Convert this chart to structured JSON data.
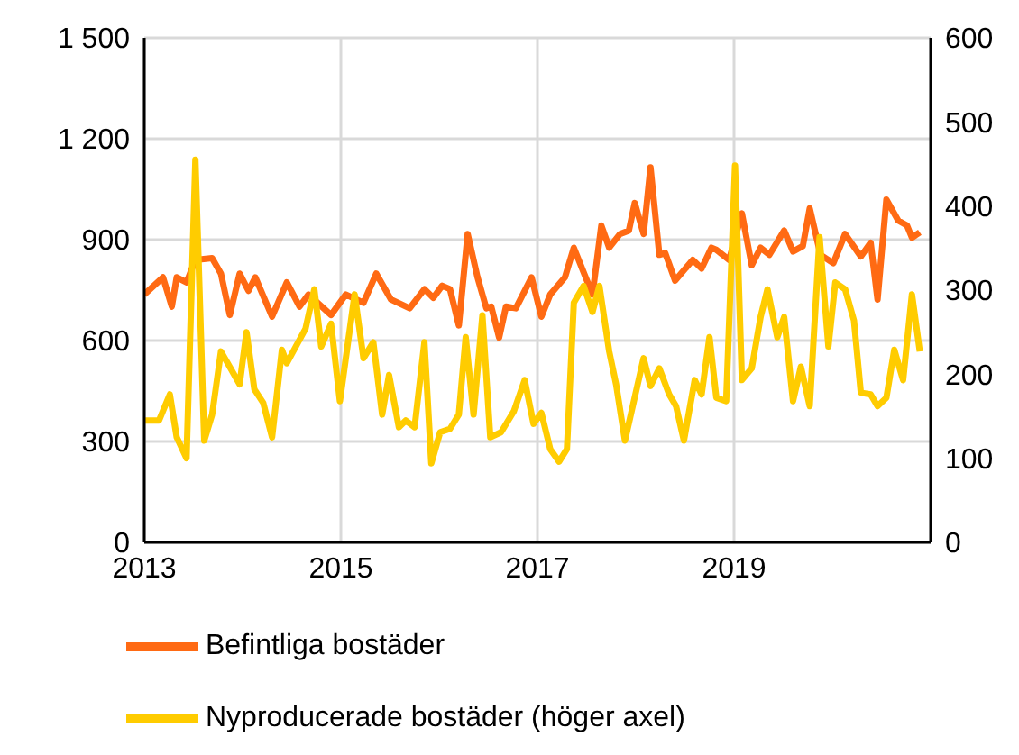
{
  "chart_data": {
    "type": "line",
    "xlim": [
      2013,
      2021
    ],
    "xticks": [
      2013,
      2015,
      2017,
      2019
    ],
    "ylim": [
      0,
      1500
    ],
    "yticks": [
      0,
      300,
      600,
      900,
      {
        "value": 1200,
        "label": "1 200"
      },
      {
        "value": 1500,
        "label": "1 500"
      }
    ],
    "y2lim": [
      0,
      600
    ],
    "y2ticks": [
      0,
      100,
      200,
      300,
      400,
      500,
      600
    ],
    "grid": true,
    "legend": "bottom",
    "marker": "none",
    "line_style": "solid",
    "series": [
      {
        "name": "Befintliga bostäder",
        "color": "#ff6a13",
        "x": [
          2013.0,
          2013.19,
          2013.28,
          2013.33,
          2013.43,
          2013.52,
          2013.69,
          2013.78,
          2013.87,
          2013.97,
          2014.06,
          2014.13,
          2014.3,
          2014.45,
          2014.58,
          2014.67,
          2014.9,
          2015.05,
          2015.23,
          2015.36,
          2015.51,
          2015.7,
          2015.85,
          2015.94,
          2016.03,
          2016.11,
          2016.2,
          2016.29,
          2016.39,
          2016.48,
          2016.53,
          2016.61,
          2016.68,
          2016.78,
          2016.94,
          2017.04,
          2017.13,
          2017.28,
          2017.37,
          2017.56,
          2017.65,
          2017.73,
          2017.84,
          2017.93,
          2017.99,
          2018.08,
          2018.15,
          2018.24,
          2018.3,
          2018.4,
          2018.58,
          2018.67,
          2018.77,
          2018.82,
          2018.95,
          2019.08,
          2019.18,
          2019.27,
          2019.36,
          2019.51,
          2019.6,
          2019.7,
          2019.77,
          2019.88,
          2020.01,
          2020.13,
          2020.29,
          2020.39,
          2020.46,
          2020.55,
          2020.67,
          2020.76,
          2020.81,
          2020.89
        ],
        "values": [
          737,
          788,
          701,
          788,
          773,
          840,
          845,
          799,
          676,
          799,
          748,
          788,
          671,
          773,
          701,
          737,
          676,
          737,
          712,
          799,
          722,
          696,
          753,
          727,
          763,
          753,
          645,
          917,
          788,
          696,
          701,
          609,
          701,
          696,
          788,
          671,
          737,
          788,
          876,
          737,
          942,
          876,
          917,
          927,
          1009,
          917,
          1115,
          855,
          860,
          778,
          840,
          814,
          876,
          870,
          840,
          978,
          824,
          876,
          855,
          927,
          865,
          881,
          993,
          855,
          830,
          917,
          850,
          891,
          722,
          1019,
          957,
          942,
          906,
          922
        ]
      },
      {
        "name": "Nyproducerade bostäder (höger axel)",
        "color": "#ffcc00",
        "axis": "y2",
        "x": [
          2013.0,
          2013.15,
          2013.26,
          2013.33,
          2013.43,
          2013.52,
          2013.61,
          2013.69,
          2013.78,
          2013.97,
          2014.04,
          2014.12,
          2014.21,
          2014.3,
          2014.4,
          2014.45,
          2014.64,
          2014.73,
          2014.8,
          2014.9,
          2014.99,
          2015.14,
          2015.23,
          2015.33,
          2015.42,
          2015.49,
          2015.59,
          2015.66,
          2015.75,
          2015.85,
          2015.92,
          2016.01,
          2016.11,
          2016.2,
          2016.27,
          2016.35,
          2016.44,
          2016.52,
          2016.63,
          2016.76,
          2016.87,
          2016.96,
          2017.04,
          2017.13,
          2017.22,
          2017.3,
          2017.37,
          2017.47,
          2017.56,
          2017.63,
          2017.73,
          2017.8,
          2017.89,
          2018.08,
          2018.15,
          2018.24,
          2018.34,
          2018.41,
          2018.49,
          2018.6,
          2018.67,
          2018.75,
          2018.82,
          2018.92,
          2019.01,
          2019.08,
          2019.18,
          2019.27,
          2019.34,
          2019.44,
          2019.51,
          2019.6,
          2019.68,
          2019.77,
          2019.87,
          2019.96,
          2020.03,
          2020.13,
          2020.22,
          2020.29,
          2020.39,
          2020.46,
          2020.55,
          2020.63,
          2020.72,
          2020.81,
          2020.89
        ],
        "values": [
          145,
          145,
          176,
          125,
          100,
          455,
          121,
          152,
          227,
          188,
          250,
          182,
          166,
          125,
          229,
          213,
          254,
          301,
          233,
          260,
          168,
          295,
          219,
          238,
          152,
          199,
          137,
          145,
          137,
          238,
          94,
          131,
          135,
          152,
          244,
          152,
          270,
          125,
          131,
          156,
          193,
          141,
          154,
          111,
          96,
          111,
          285,
          305,
          274,
          305,
          227,
          188,
          121,
          219,
          186,
          207,
          176,
          162,
          121,
          193,
          176,
          244,
          172,
          168,
          448,
          193,
          207,
          268,
          301,
          244,
          268,
          168,
          209,
          162,
          363,
          233,
          309,
          301,
          264,
          178,
          176,
          162,
          172,
          229,
          193,
          295,
          227
        ]
      }
    ]
  }
}
